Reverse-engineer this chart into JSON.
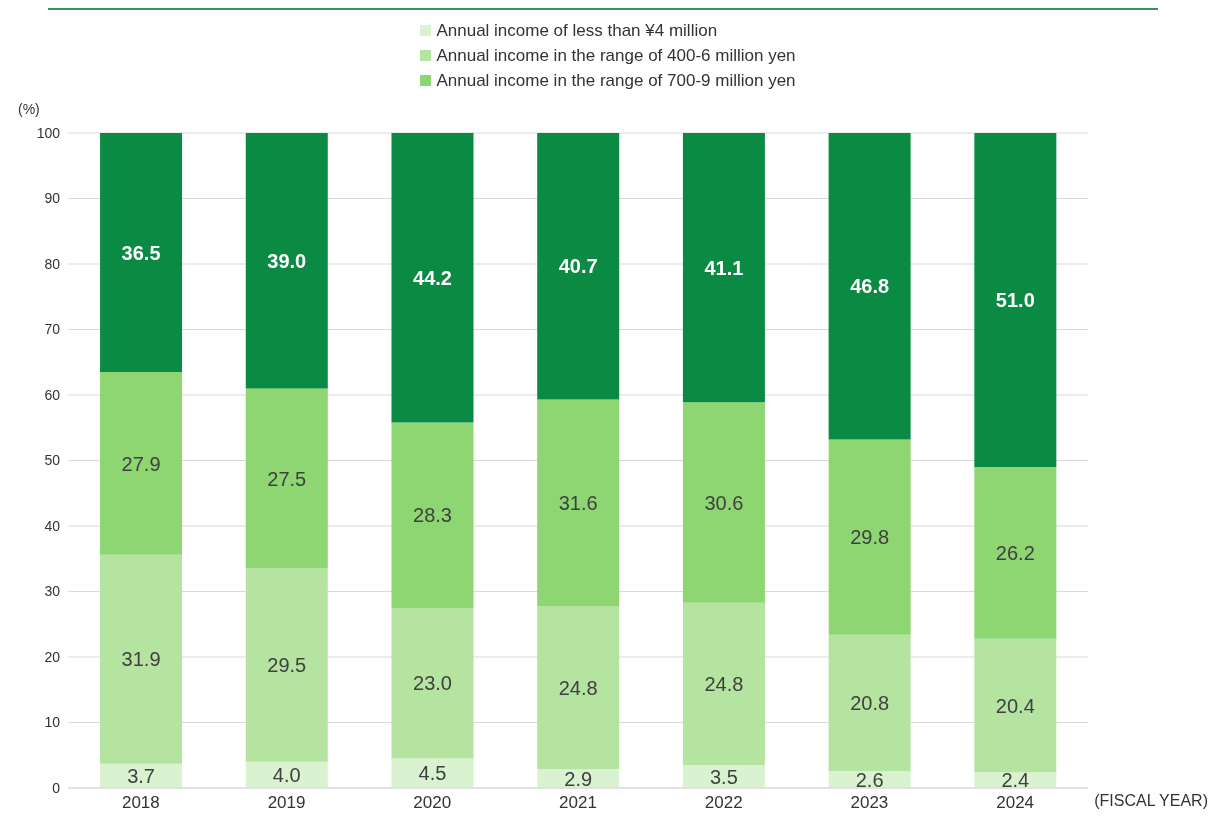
{
  "chart_data": {
    "type": "bar",
    "stacked": true,
    "categories": [
      "2018",
      "2019",
      "2020",
      "2021",
      "2022",
      "2023",
      "2024"
    ],
    "series": [
      {
        "name": "Annual income of less than ¥4 million",
        "color": "#d9f2cf",
        "values": [
          3.7,
          4.0,
          4.5,
          2.9,
          3.5,
          2.6,
          2.4
        ],
        "value_labels": [
          "3.7",
          "4.0",
          "4.5",
          "2.9",
          "3.5",
          "2.6",
          "2.4"
        ]
      },
      {
        "name": "Annual income in the range of 400-6 million yen",
        "color": "#b5e3a0",
        "values": [
          31.9,
          29.5,
          23.0,
          24.8,
          24.8,
          20.8,
          20.4
        ],
        "value_labels": [
          "31.9",
          "29.5",
          "23.0",
          "24.8",
          "24.8",
          "20.8",
          "20.4"
        ]
      },
      {
        "name": "Annual income in the range of 700-9 million yen",
        "color": "#8dd672",
        "values": [
          27.9,
          27.5,
          28.3,
          31.6,
          30.6,
          29.8,
          26.2
        ],
        "value_labels": [
          "27.9",
          "27.5",
          "28.3",
          "31.6",
          "30.6",
          "29.8",
          "26.2"
        ]
      },
      {
        "color": "#0a8a43",
        "values": [
          36.5,
          39.0,
          44.2,
          40.7,
          41.1,
          46.8,
          51.0
        ],
        "value_labels": [
          "36.5",
          "39.0",
          "44.2",
          "40.7",
          "41.1",
          "46.8",
          "51.0"
        ]
      }
    ],
    "ylim": [
      0,
      100
    ],
    "yticks": [
      0,
      10,
      20,
      30,
      40,
      50,
      60,
      70,
      80,
      90,
      100
    ],
    "ylabel": "(%)",
    "xlabel": "(FISCAL YEAR)",
    "grid": "y",
    "legend": "top"
  }
}
